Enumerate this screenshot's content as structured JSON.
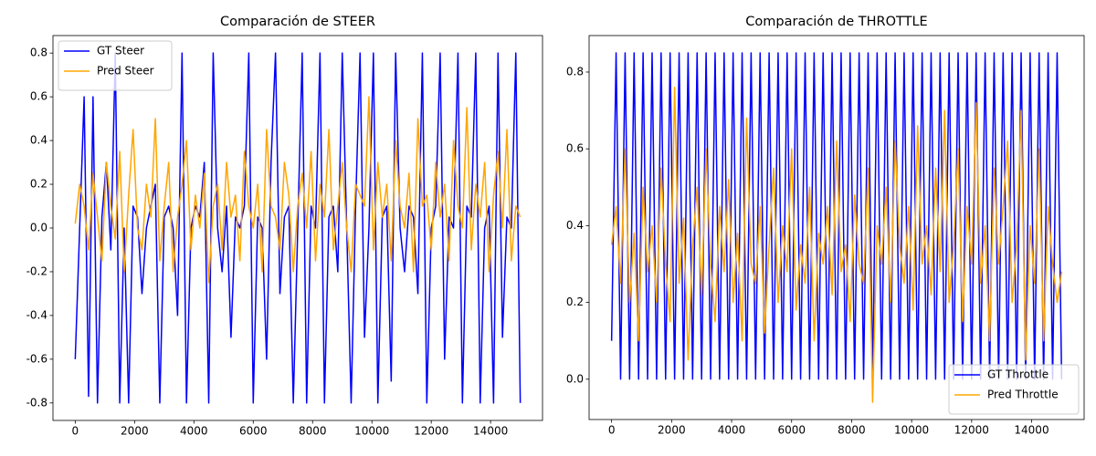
{
  "chart_data": [
    {
      "type": "line",
      "title": "Comparación de STEER",
      "x": [
        0,
        150,
        300,
        450,
        600,
        750,
        900,
        1050,
        1200,
        1350,
        1500,
        1650,
        1800,
        1950,
        2100,
        2250,
        2400,
        2550,
        2700,
        2850,
        3000,
        3150,
        3300,
        3450,
        3600,
        3750,
        3900,
        4050,
        4200,
        4350,
        4500,
        4650,
        4800,
        4950,
        5100,
        5250,
        5400,
        5550,
        5700,
        5850,
        6000,
        6150,
        6300,
        6450,
        6600,
        6750,
        6900,
        7050,
        7200,
        7350,
        7500,
        7650,
        7800,
        7950,
        8100,
        8250,
        8400,
        8550,
        8700,
        8850,
        9000,
        9150,
        9300,
        9450,
        9600,
        9750,
        9900,
        10050,
        10200,
        10350,
        10500,
        10650,
        10800,
        10950,
        11100,
        11250,
        11400,
        11550,
        11700,
        11850,
        12000,
        12150,
        12300,
        12450,
        12600,
        12750,
        12900,
        13050,
        13200,
        13350,
        13500,
        13650,
        13800,
        13950,
        14100,
        14250,
        14400,
        14550,
        14700,
        14850,
        15000
      ],
      "series": [
        {
          "name": "GT Steer",
          "color": "#0000ff",
          "values": [
            -0.6,
            0.0,
            0.6,
            -0.77,
            0.6,
            -0.8,
            0.05,
            0.3,
            -0.1,
            0.8,
            -0.8,
            0.0,
            -0.8,
            0.1,
            0.05,
            -0.3,
            0.0,
            0.1,
            0.2,
            -0.8,
            0.05,
            0.1,
            0.0,
            -0.4,
            0.8,
            -0.8,
            0.0,
            0.1,
            0.05,
            0.3,
            -0.8,
            0.8,
            0.0,
            -0.2,
            0.1,
            -0.5,
            0.05,
            0.0,
            0.1,
            0.8,
            -0.8,
            0.05,
            0.0,
            -0.6,
            0.3,
            0.8,
            -0.3,
            0.05,
            0.1,
            -0.8,
            0.0,
            0.8,
            -0.8,
            0.1,
            0.0,
            0.8,
            -0.8,
            0.05,
            0.1,
            -0.2,
            0.8,
            0.0,
            -0.8,
            0.1,
            0.8,
            -0.5,
            0.0,
            0.8,
            -0.8,
            0.05,
            0.1,
            -0.7,
            0.8,
            0.0,
            -0.2,
            0.1,
            0.05,
            -0.3,
            0.8,
            -0.8,
            0.0,
            0.1,
            0.8,
            -0.6,
            0.05,
            0.0,
            0.8,
            -0.8,
            0.1,
            0.05,
            0.8,
            -0.8,
            0.0,
            0.1,
            -0.8,
            0.8,
            -0.5,
            0.05,
            0.0,
            0.8,
            -0.8
          ]
        },
        {
          "name": "Pred Steer",
          "color": "#ffa500",
          "values": [
            0.02,
            0.2,
            0.1,
            -0.1,
            0.25,
            0.05,
            -0.15,
            0.3,
            0.1,
            -0.05,
            0.35,
            -0.2,
            0.15,
            0.45,
            0.0,
            -0.1,
            0.2,
            0.05,
            0.5,
            -0.15,
            0.1,
            0.3,
            -0.2,
            0.05,
            0.2,
            0.4,
            -0.1,
            0.15,
            0.0,
            0.25,
            -0.25,
            0.1,
            0.2,
            -0.1,
            0.3,
            0.05,
            0.15,
            -0.15,
            0.35,
            0.1,
            0.0,
            0.2,
            -0.2,
            0.45,
            0.1,
            0.05,
            -0.1,
            0.3,
            0.15,
            -0.2,
            0.1,
            0.25,
            0.0,
            0.35,
            -0.15,
            0.2,
            0.05,
            0.45,
            -0.1,
            0.1,
            0.3,
            0.0,
            -0.2,
            0.2,
            0.15,
            0.1,
            0.6,
            -0.1,
            0.3,
            0.05,
            0.2,
            -0.15,
            0.4,
            0.1,
            0.0,
            0.25,
            -0.2,
            0.5,
            0.1,
            0.15,
            -0.1,
            0.3,
            0.05,
            0.2,
            -0.15,
            0.4,
            0.1,
            0.0,
            0.55,
            -0.1,
            0.2,
            0.05,
            0.3,
            -0.2,
            0.15,
            0.35,
            0.0,
            0.45,
            -0.15,
            0.1,
            0.05
          ]
        }
      ],
      "xlim": [
        -750,
        15750
      ],
      "xticks": [
        0,
        2000,
        4000,
        6000,
        8000,
        10000,
        12000,
        14000
      ],
      "ylim": [
        -0.88,
        0.88
      ],
      "yticks": [
        -0.8,
        -0.6,
        -0.4,
        -0.2,
        {
          "value": 0,
          "label": "0.0"
        },
        0.2,
        0.4,
        0.6,
        0.8
      ],
      "legend": "upper left"
    },
    {
      "type": "line",
      "title": "Comparación de THROTTLE",
      "x": [
        0,
        150,
        300,
        450,
        600,
        750,
        900,
        1050,
        1200,
        1350,
        1500,
        1650,
        1800,
        1950,
        2100,
        2250,
        2400,
        2550,
        2700,
        2850,
        3000,
        3150,
        3300,
        3450,
        3600,
        3750,
        3900,
        4050,
        4200,
        4350,
        4500,
        4650,
        4800,
        4950,
        5100,
        5250,
        5400,
        5550,
        5700,
        5850,
        6000,
        6150,
        6300,
        6450,
        6600,
        6750,
        6900,
        7050,
        7200,
        7350,
        7500,
        7650,
        7800,
        7950,
        8100,
        8250,
        8400,
        8550,
        8700,
        8850,
        9000,
        9150,
        9300,
        9450,
        9600,
        9750,
        9900,
        10050,
        10200,
        10350,
        10500,
        10650,
        10800,
        10950,
        11100,
        11250,
        11400,
        11550,
        11700,
        11850,
        12000,
        12150,
        12300,
        12450,
        12600,
        12750,
        12900,
        13050,
        13200,
        13350,
        13500,
        13650,
        13800,
        13950,
        14100,
        14250,
        14400,
        14550,
        14700,
        14850,
        15000
      ],
      "series": [
        {
          "name": "GT Throttle",
          "color": "#0000ff",
          "values": [
            0.1,
            0.85,
            0.0,
            0.85,
            0.0,
            0.85,
            0.0,
            0.85,
            0.0,
            0.85,
            0.0,
            0.85,
            0.0,
            0.85,
            0.0,
            0.85,
            0.0,
            0.85,
            0.0,
            0.85,
            0.0,
            0.85,
            0.0,
            0.85,
            0.0,
            0.85,
            0.0,
            0.85,
            0.0,
            0.85,
            0.0,
            0.85,
            0.0,
            0.85,
            0.0,
            0.85,
            0.0,
            0.85,
            0.0,
            0.85,
            0.0,
            0.85,
            0.0,
            0.85,
            0.0,
            0.85,
            0.0,
            0.85,
            0.0,
            0.85,
            0.0,
            0.85,
            0.0,
            0.85,
            0.0,
            0.85,
            0.0,
            0.85,
            0.0,
            0.85,
            0.0,
            0.85,
            0.0,
            0.85,
            0.0,
            0.85,
            0.0,
            0.85,
            0.0,
            0.85,
            0.0,
            0.85,
            0.0,
            0.85,
            0.0,
            0.85,
            0.0,
            0.85,
            0.0,
            0.85,
            0.0,
            0.85,
            0.0,
            0.85,
            0.0,
            0.85,
            0.0,
            0.85,
            0.0,
            0.85,
            0.0,
            0.85,
            0.0,
            0.85,
            0.0,
            0.85,
            0.0,
            0.85,
            0.0,
            0.85,
            0.0
          ]
        },
        {
          "name": "Pred Throttle",
          "color": "#ffa500",
          "values": [
            0.35,
            0.45,
            0.25,
            0.6,
            0.2,
            0.38,
            0.1,
            0.5,
            0.28,
            0.4,
            0.2,
            0.55,
            0.3,
            0.15,
            0.76,
            0.25,
            0.42,
            0.05,
            0.35,
            0.5,
            0.22,
            0.6,
            0.3,
            0.15,
            0.45,
            0.28,
            0.52,
            0.2,
            0.38,
            0.1,
            0.68,
            0.3,
            0.25,
            0.45,
            0.12,
            0.35,
            0.55,
            0.2,
            0.4,
            0.28,
            0.6,
            0.18,
            0.35,
            0.25,
            0.5,
            0.1,
            0.38,
            0.3,
            0.45,
            0.22,
            0.62,
            0.28,
            0.35,
            0.15,
            0.48,
            0.3,
            0.25,
            0.55,
            -0.06,
            0.4,
            0.3,
            0.5,
            0.2,
            0.62,
            0.35,
            0.25,
            0.45,
            0.18,
            0.66,
            0.3,
            0.4,
            0.22,
            0.55,
            0.28,
            0.7,
            0.2,
            0.35,
            0.6,
            0.15,
            0.45,
            0.3,
            0.72,
            0.25,
            0.4,
            0.1,
            0.55,
            0.3,
            0.45,
            0.62,
            0.2,
            0.35,
            0.7,
            0.05,
            0.4,
            0.25,
            0.6,
            0.1,
            0.45,
            0.3,
            0.2,
            0.28
          ]
        }
      ],
      "xlim": [
        -750,
        15750
      ],
      "xticks": [
        0,
        2000,
        4000,
        6000,
        8000,
        10000,
        12000,
        14000
      ],
      "ylim": [
        -0.105,
        0.895
      ],
      "yticks": [
        {
          "value": 0,
          "label": "0.0"
        },
        0.2,
        0.4,
        0.6,
        0.8
      ],
      "legend": "lower right"
    }
  ]
}
